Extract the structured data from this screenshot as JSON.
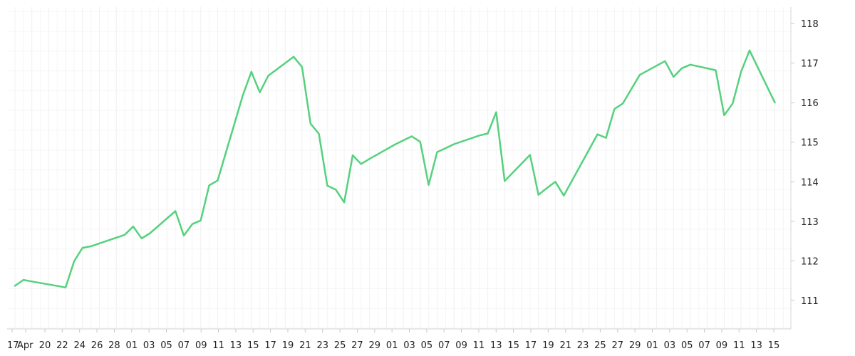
{
  "chart_data": {
    "type": "line",
    "title": "",
    "xlabel": "",
    "ylabel": "",
    "x_tick_labels": [
      "17",
      "Apr",
      "20",
      "22",
      "24",
      "26",
      "28",
      "01",
      "03",
      "05",
      "07",
      "09",
      "11",
      "13",
      "15",
      "17",
      "19",
      "21",
      "23",
      "25",
      "27",
      "29",
      "01",
      "03",
      "05",
      "07",
      "09",
      "11",
      "13",
      "15",
      "17",
      "19",
      "21",
      "23",
      "25",
      "27",
      "29",
      "01",
      "03",
      "05",
      "07",
      "09",
      "11",
      "13",
      "15"
    ],
    "y_ticks": [
      111,
      112,
      113,
      114,
      115,
      116,
      117,
      118
    ],
    "ylim": [
      110.3,
      118.3
    ],
    "xlim": [
      0,
      91
    ],
    "grid": true,
    "y_axis_side": "right",
    "colors": {
      "series": "#55d17e",
      "grid": "#f0f0f0",
      "text": "#222222"
    },
    "series": [
      {
        "name": "",
        "x": [
          0,
          1,
          2,
          6,
          7,
          8,
          9,
          13,
          14,
          15,
          16,
          19,
          20,
          21,
          22,
          23,
          24,
          27,
          28,
          29,
          30,
          33,
          34,
          35,
          36,
          37,
          38,
          39,
          40,
          41,
          42,
          43,
          44,
          45,
          47,
          48,
          49,
          50,
          51,
          52,
          55,
          56,
          57,
          58,
          61,
          62,
          63,
          64,
          65,
          69,
          70,
          71,
          72,
          73,
          74,
          77,
          78,
          79,
          80,
          83,
          84,
          85,
          86,
          87,
          90
        ],
        "y": [
          111.37,
          111.52,
          111.48,
          111.33,
          111.99,
          112.33,
          112.37,
          112.66,
          112.87,
          112.57,
          112.7,
          113.26,
          112.64,
          112.93,
          113.02,
          113.91,
          114.03,
          116.19,
          116.78,
          116.26,
          116.68,
          117.16,
          116.9,
          115.47,
          115.21,
          113.9,
          113.8,
          113.48,
          114.67,
          114.45,
          114.58,
          114.7,
          114.82,
          114.94,
          115.15,
          115.01,
          113.92,
          114.75,
          114.85,
          114.95,
          115.17,
          115.22,
          115.76,
          114.02,
          114.68,
          113.67,
          113.84,
          114.0,
          113.65,
          115.2,
          115.11,
          115.84,
          115.98,
          116.34,
          116.7,
          117.05,
          116.65,
          116.87,
          116.96,
          116.82,
          115.68,
          115.98,
          116.78,
          117.32,
          116.0
        ]
      }
    ]
  }
}
